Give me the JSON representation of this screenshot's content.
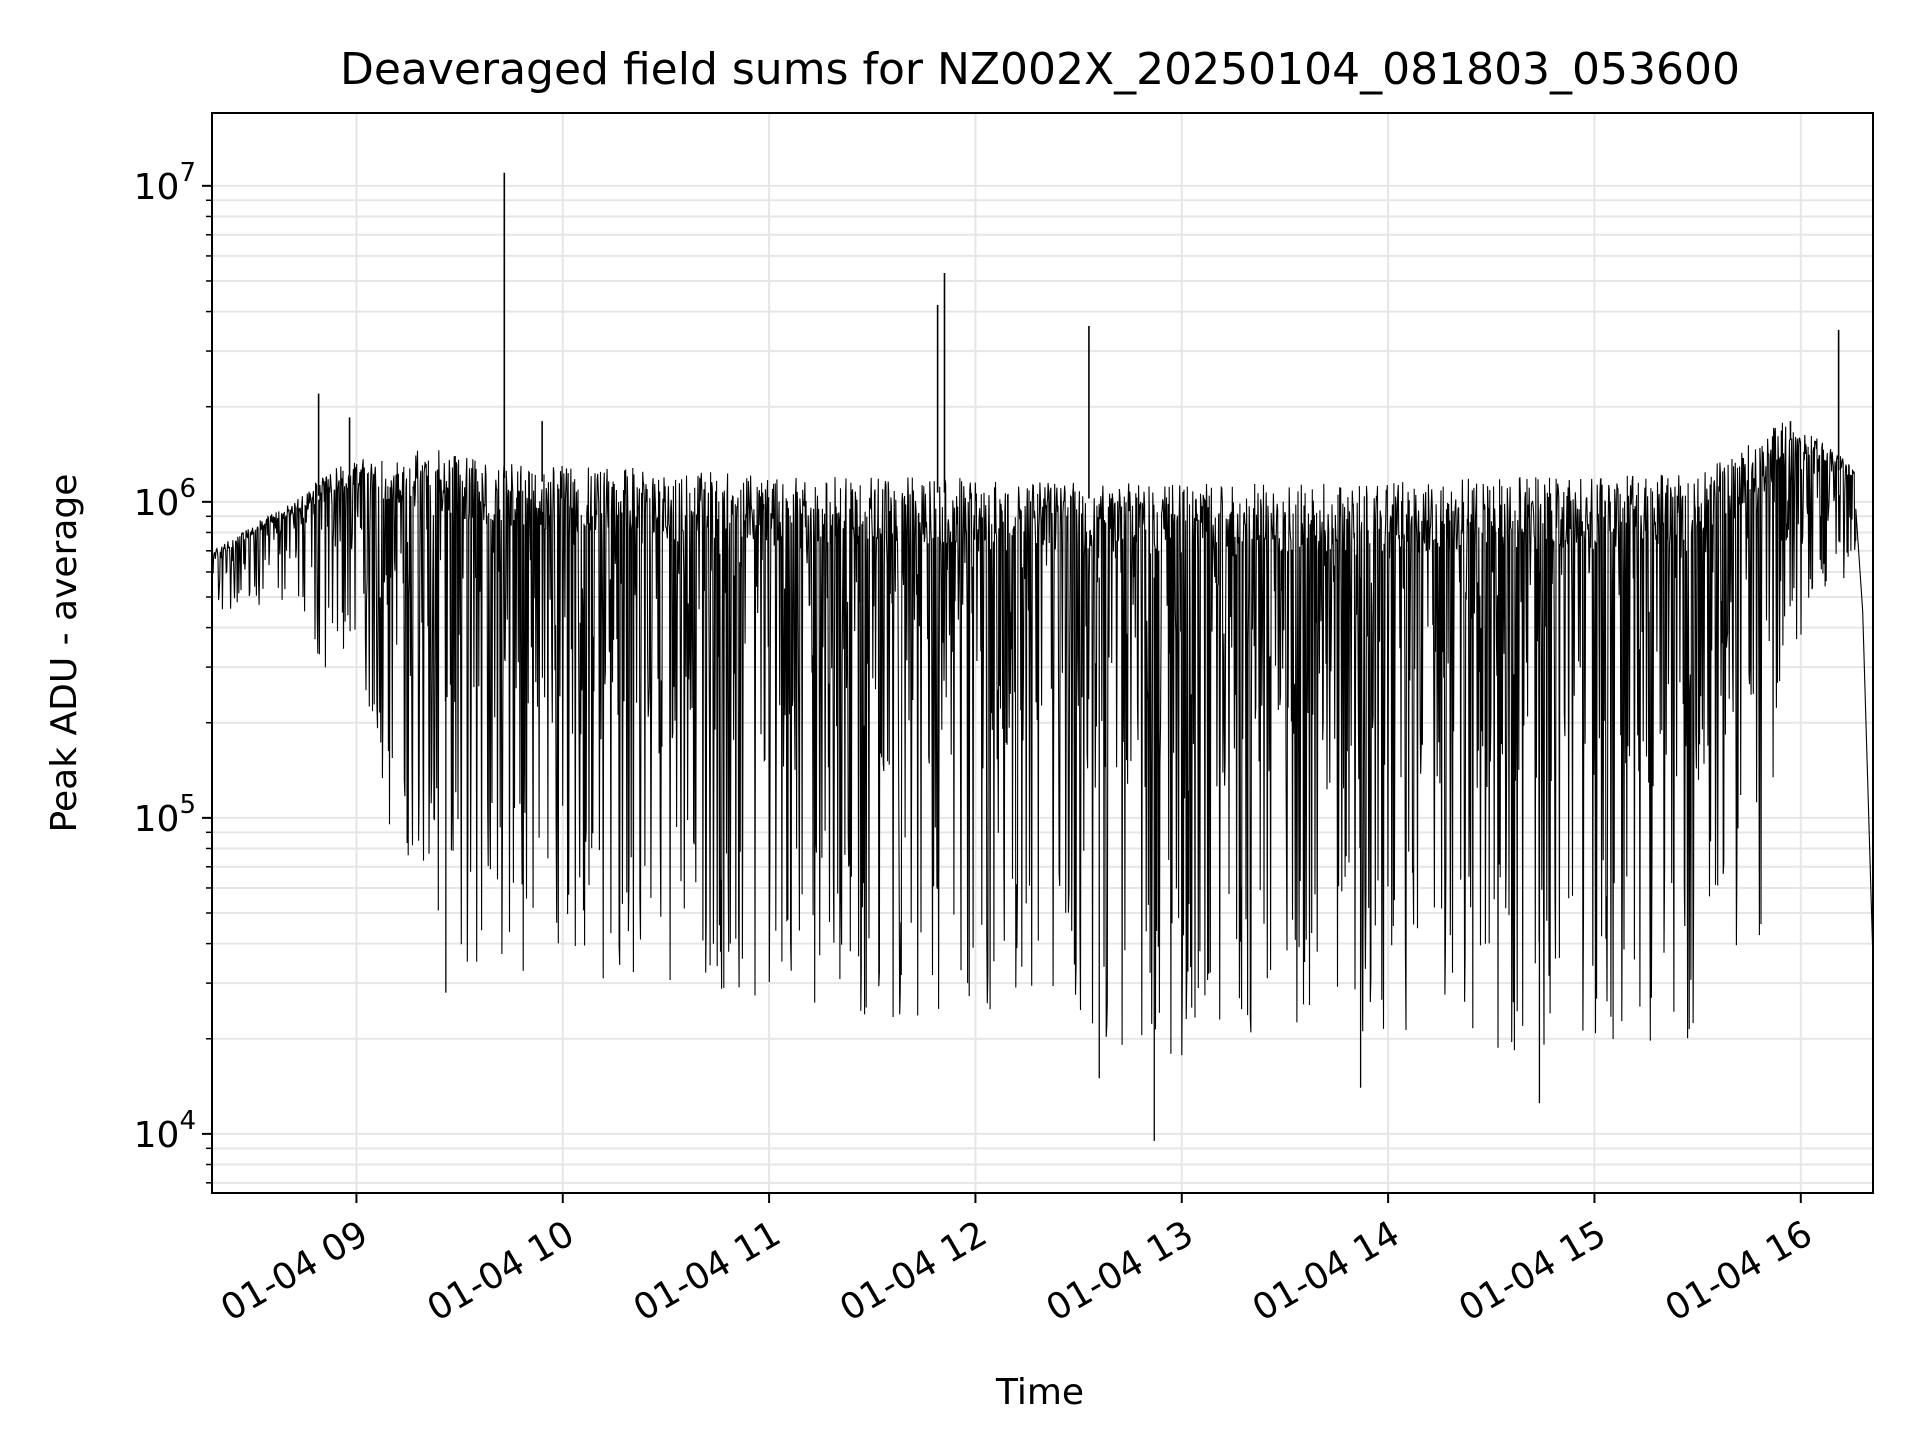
{
  "chart_data": {
    "type": "line",
    "title": "Deaveraged field sums for NZ002X_20250104_081803_053600",
    "xlabel": "Time",
    "ylabel": "Peak ADU - average",
    "yscale": "log",
    "ylim": [
      6500,
      17000000
    ],
    "xlim": [
      "2025-01-04 08:18",
      "2025-01-04 16:21"
    ],
    "grid": true,
    "x_ticks": [
      {
        "t": "2025-01-04 09:00",
        "label": "01-04 09"
      },
      {
        "t": "2025-01-04 10:00",
        "label": "01-04 10"
      },
      {
        "t": "2025-01-04 11:00",
        "label": "01-04 11"
      },
      {
        "t": "2025-01-04 12:00",
        "label": "01-04 12"
      },
      {
        "t": "2025-01-04 13:00",
        "label": "01-04 13"
      },
      {
        "t": "2025-01-04 14:00",
        "label": "01-04 14"
      },
      {
        "t": "2025-01-04 15:00",
        "label": "01-04 15"
      },
      {
        "t": "2025-01-04 16:00",
        "label": "01-04 16"
      }
    ],
    "y_ticks": [
      {
        "value": 10000,
        "base": "10",
        "exp": "4"
      },
      {
        "value": 100000,
        "base": "10",
        "exp": "5"
      },
      {
        "value": 1000000,
        "base": "10",
        "exp": "6"
      },
      {
        "value": 10000000,
        "base": "10",
        "exp": "7"
      }
    ],
    "series": [
      {
        "color": "#000000",
        "envelope": [
          {
            "t": "2025-01-04 08:18",
            "min": 450000,
            "max": 700000
          },
          {
            "t": "2025-01-04 08:30",
            "min": 450000,
            "max": 850000
          },
          {
            "t": "2025-01-04 08:42",
            "min": 480000,
            "max": 1000000
          },
          {
            "t": "2025-01-04 08:50",
            "min": 300000,
            "max": 1200000
          },
          {
            "t": "2025-01-04 09:00",
            "min": 250000,
            "max": 1400000
          },
          {
            "t": "2025-01-04 09:10",
            "min": 90000,
            "max": 1400000
          },
          {
            "t": "2025-01-04 09:20",
            "min": 55000,
            "max": 1500000
          },
          {
            "t": "2025-01-04 09:30",
            "min": 30000,
            "max": 1400000
          },
          {
            "t": "2025-01-04 09:50",
            "min": 33000,
            "max": 1300000
          },
          {
            "t": "2025-01-04 10:10",
            "min": 30000,
            "max": 1300000
          },
          {
            "t": "2025-01-04 10:40",
            "min": 28000,
            "max": 1250000
          },
          {
            "t": "2025-01-04 11:00",
            "min": 25000,
            "max": 1200000
          },
          {
            "t": "2025-01-04 11:30",
            "min": 22000,
            "max": 1200000
          },
          {
            "t": "2025-01-04 12:00",
            "min": 25000,
            "max": 1200000
          },
          {
            "t": "2025-01-04 12:30",
            "min": 20000,
            "max": 1150000
          },
          {
            "t": "2025-01-04 13:00",
            "min": 17000,
            "max": 1150000
          },
          {
            "t": "2025-01-04 13:30",
            "min": 18000,
            "max": 1150000
          },
          {
            "t": "2025-01-04 14:00",
            "min": 20000,
            "max": 1150000
          },
          {
            "t": "2025-01-04 14:30",
            "min": 18000,
            "max": 1200000
          },
          {
            "t": "2025-01-04 15:00",
            "min": 17000,
            "max": 1200000
          },
          {
            "t": "2025-01-04 15:30",
            "min": 20000,
            "max": 1250000
          },
          {
            "t": "2025-01-04 15:48",
            "min": 40000,
            "max": 1600000
          },
          {
            "t": "2025-01-04 15:55",
            "min": 250000,
            "max": 1800000
          },
          {
            "t": "2025-01-04 16:05",
            "min": 500000,
            "max": 1600000
          },
          {
            "t": "2025-01-04 16:15",
            "min": 600000,
            "max": 1300000
          }
        ],
        "spikes": [
          {
            "t": "2025-01-04 08:49",
            "value": 2200000
          },
          {
            "t": "2025-01-04 08:58",
            "value": 1850000
          },
          {
            "t": "2025-01-04 09:43",
            "value": 11000000
          },
          {
            "t": "2025-01-04 09:54",
            "value": 1800000
          },
          {
            "t": "2025-01-04 11:49",
            "value": 4200000
          },
          {
            "t": "2025-01-04 11:51",
            "value": 5300000
          },
          {
            "t": "2025-01-04 12:33",
            "value": 3600000
          },
          {
            "t": "2025-01-04 15:57",
            "value": 1800000
          },
          {
            "t": "2025-01-04 16:11",
            "value": 3500000
          }
        ],
        "dips": [
          {
            "t": "2025-01-04 09:26",
            "value": 28000
          },
          {
            "t": "2025-01-04 12:36",
            "value": 15000
          },
          {
            "t": "2025-01-04 12:52",
            "value": 9500
          },
          {
            "t": "2025-01-04 13:52",
            "value": 14000
          },
          {
            "t": "2025-01-04 14:44",
            "value": 12500
          }
        ],
        "tail": [
          {
            "t": "2025-01-04 16:16",
            "value": 950000
          },
          {
            "t": "2025-01-04 16:18",
            "value": 450000
          },
          {
            "t": "2025-01-04 16:21",
            "value": 35000
          }
        ]
      }
    ]
  }
}
